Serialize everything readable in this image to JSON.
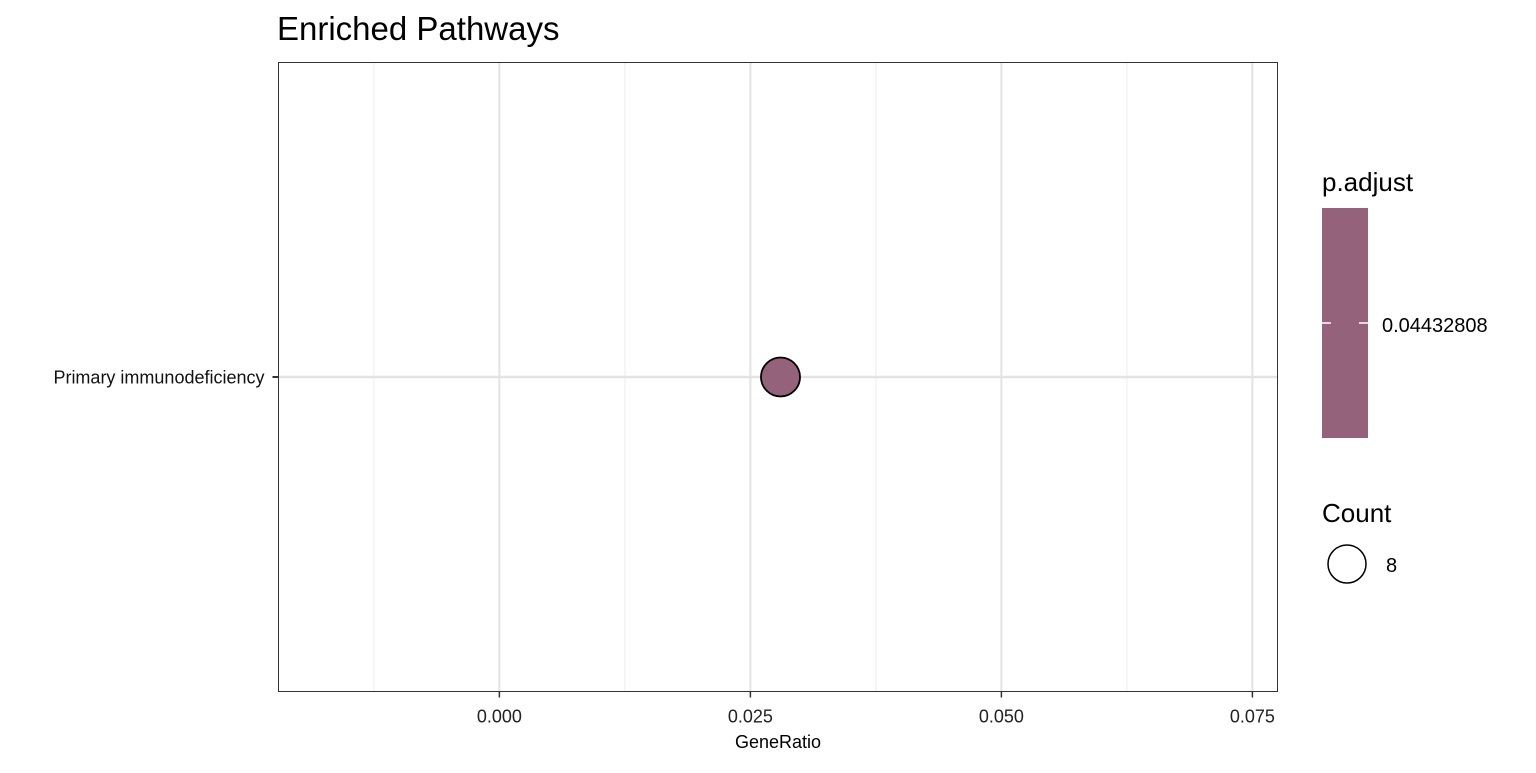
{
  "chart_data": {
    "type": "scatter",
    "title": "Enriched Pathways",
    "xlabel": "GeneRatio",
    "ylabel": "",
    "xlim": [
      -0.022,
      0.0775
    ],
    "x_ticks": [
      0.0,
      0.025,
      0.05,
      0.075
    ],
    "x_tick_labels": [
      "0.000",
      "0.025",
      "0.050",
      "0.075"
    ],
    "categories": [
      "Primary immunodeficiency"
    ],
    "points": [
      {
        "category": "Primary immunodeficiency",
        "x": 0.028,
        "count": 8,
        "p_adjust": 0.04432808
      }
    ],
    "grid": true,
    "legend_position": "right",
    "color_legend": {
      "title": "p.adjust",
      "label": "0.04432808",
      "color": "#94627B"
    },
    "size_legend": {
      "title": "Count",
      "label": "8"
    },
    "colors": {
      "point_fill": "#94627B",
      "point_stroke": "#000000",
      "grid_major": "#E3E3E3",
      "grid_minor": "#EEEEEE",
      "panel_border": "#333333"
    }
  }
}
